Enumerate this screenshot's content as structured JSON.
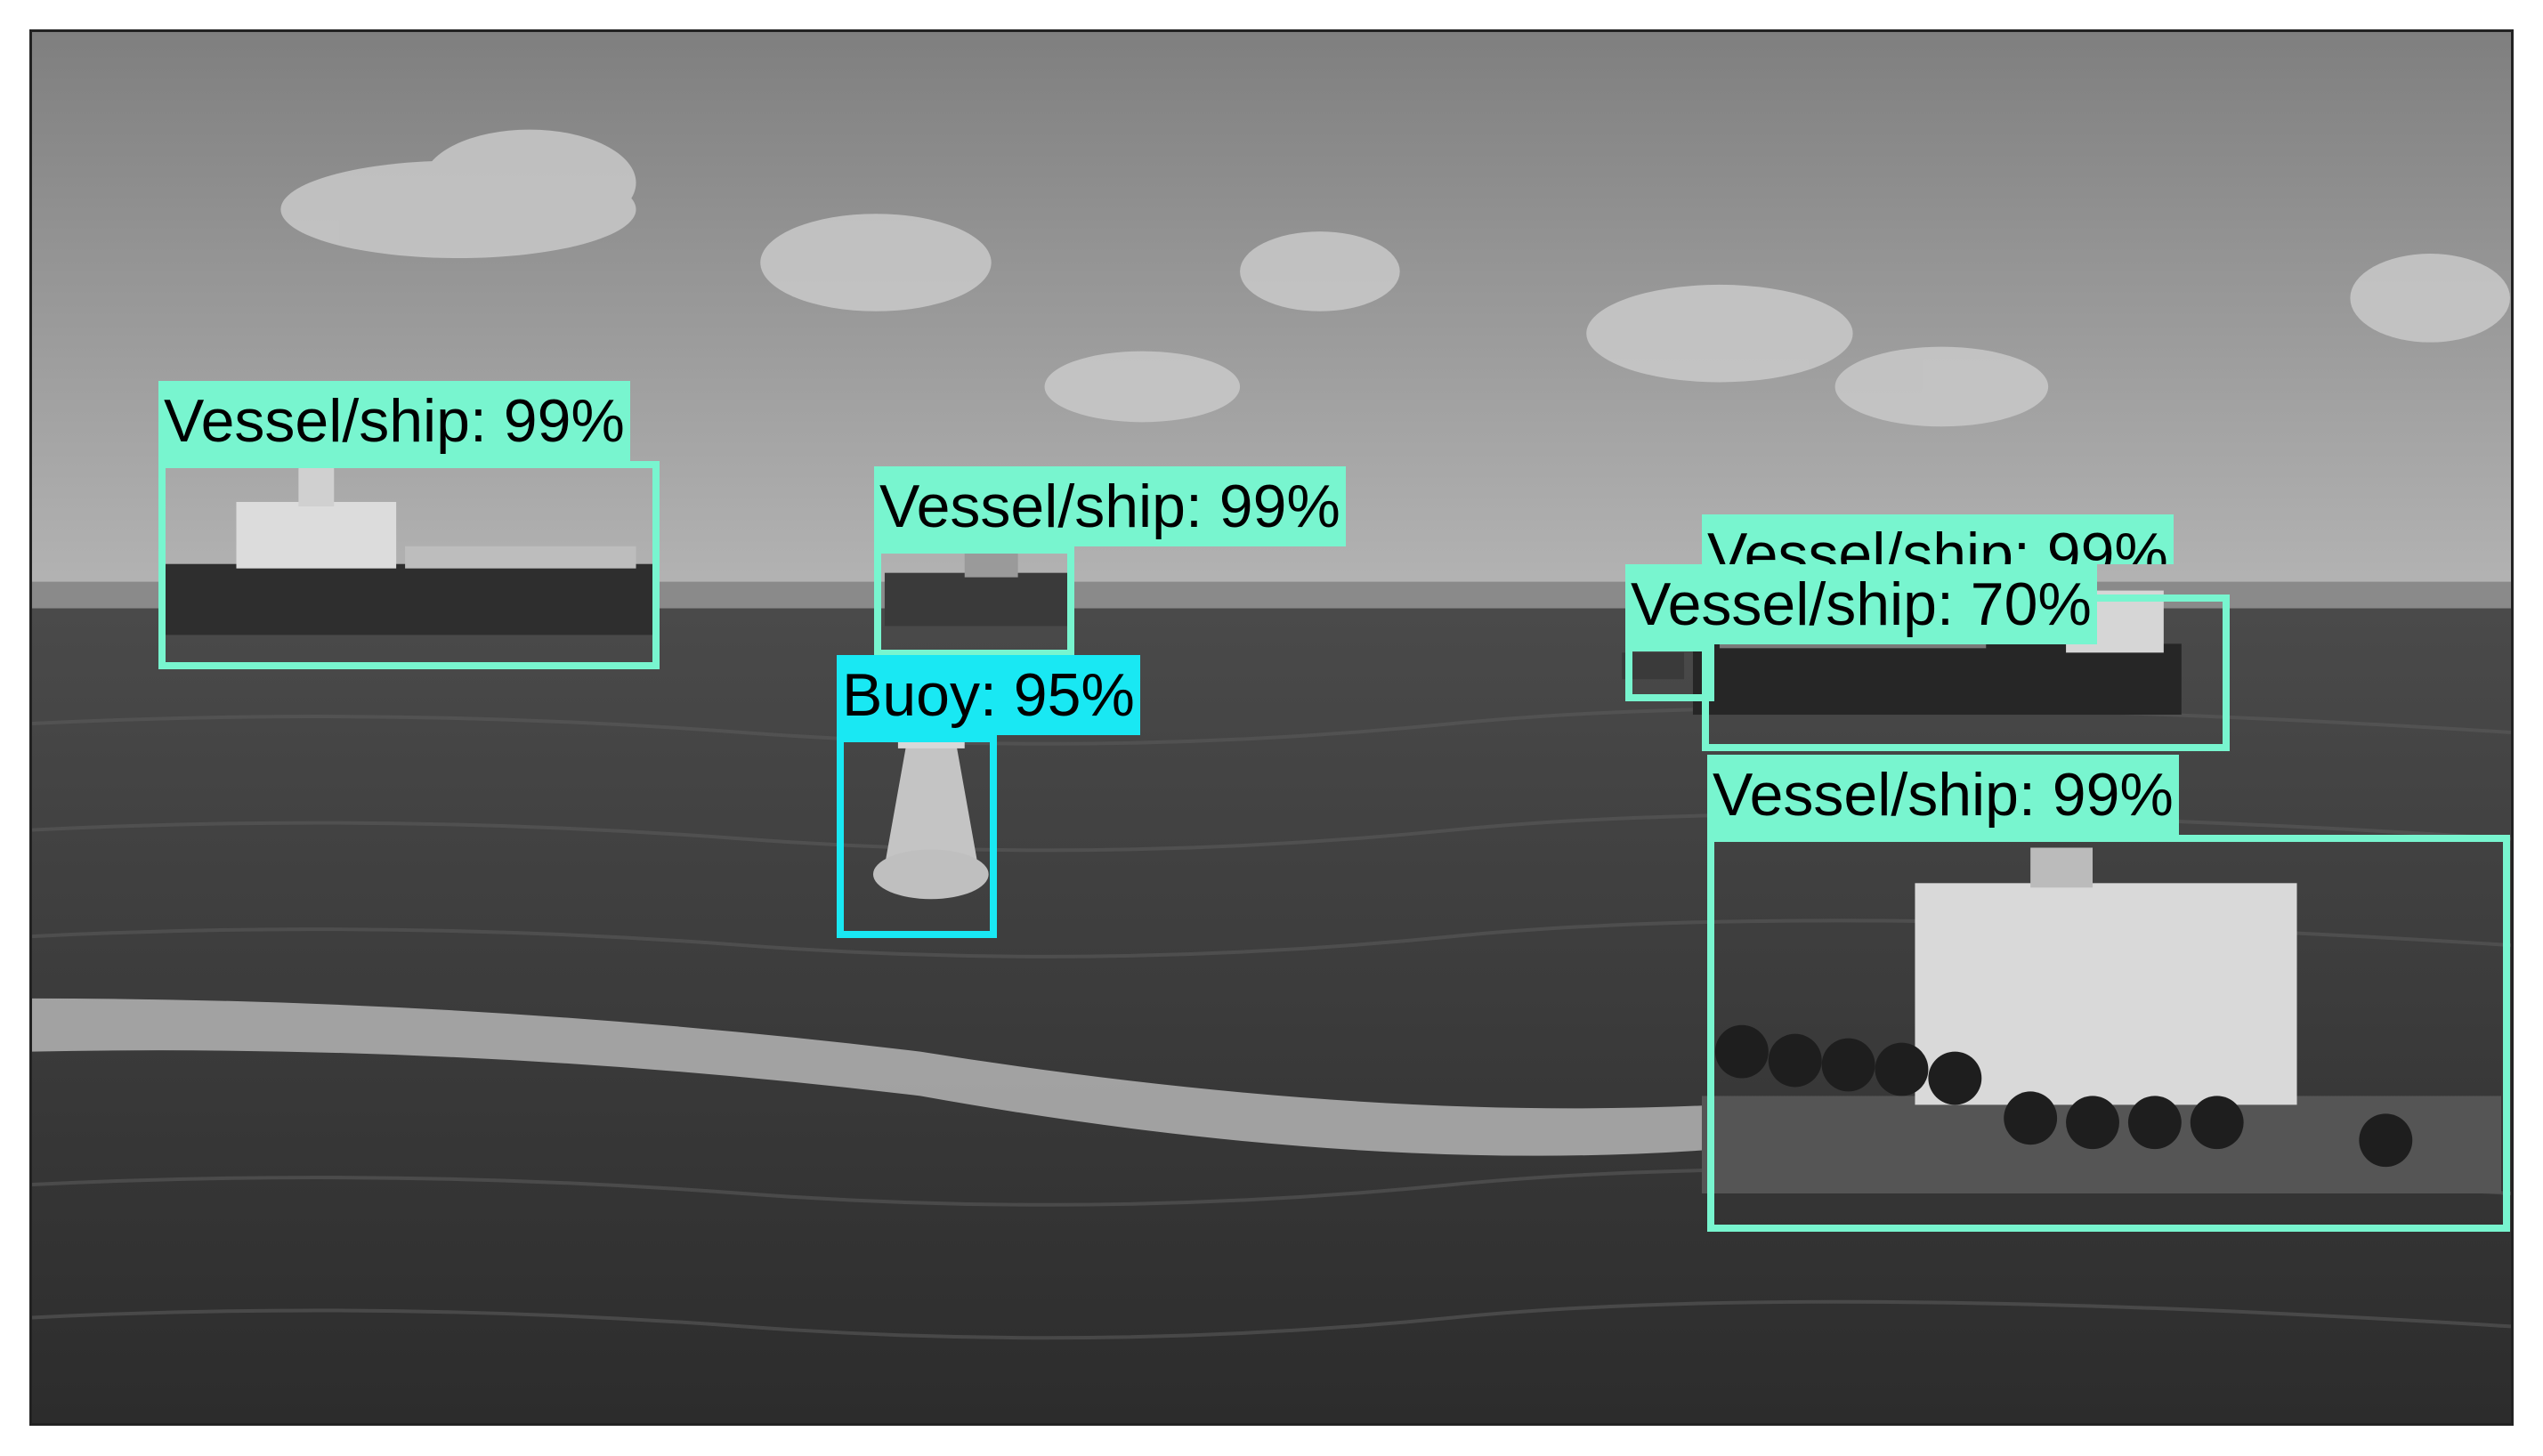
{
  "scene": {
    "description_colors": {
      "sky": "#9a9a9a",
      "sea": "#3a3a3a"
    },
    "icon": "grayscale-sea-photo"
  },
  "detections": [
    {
      "label": "Vessel/ship: 99%",
      "class_color": "#78f5cf"
    },
    {
      "label": "Vessel/ship: 99%",
      "class_color": "#78f5cf"
    },
    {
      "label": "Buoy: 95%",
      "class_color": "#19e8f3"
    },
    {
      "label": "Vessel/ship: 99%",
      "class_color": "#78f5cf"
    },
    {
      "label": "Vessel/ship: 70%",
      "class_color": "#78f5cf"
    },
    {
      "label": "Vessel/ship: 99%",
      "class_color": "#78f5cf"
    }
  ]
}
